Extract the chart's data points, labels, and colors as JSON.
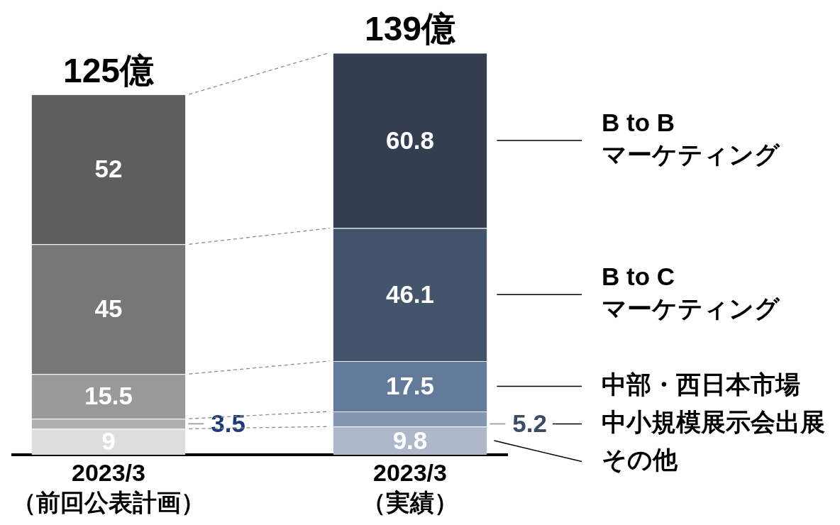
{
  "chart_data": {
    "type": "bar",
    "categories": [
      "2023/3\n（前回公表計画）",
      "2023/3\n（実績）"
    ],
    "series": [
      {
        "name": "その他",
        "colors": [
          "#dddddd",
          "#adb9ca"
        ],
        "values": [
          9,
          9.8
        ]
      },
      {
        "name": "中小規模展示会出展",
        "colors": [
          "#afafaf",
          "#8497b0"
        ],
        "values": [
          3.5,
          5.2
        ]
      },
      {
        "name": "中部・西日本市場",
        "colors": [
          "#999999",
          "#637b99"
        ],
        "values": [
          15.5,
          17.5
        ]
      },
      {
        "name": "B to C\nマーケティング",
        "colors": [
          "#777777",
          "#44546a"
        ],
        "values": [
          45,
          46.1
        ]
      },
      {
        "name": "B to B\nマーケティング",
        "colors": [
          "#5f5f5f",
          "#333f50"
        ],
        "values": [
          52,
          60.8
        ]
      }
    ],
    "stacked": true,
    "data_labels": true,
    "totals": [
      "125億",
      "139億"
    ],
    "ylim": [
      0,
      140
    ],
    "tick_labels": "x"
  }
}
